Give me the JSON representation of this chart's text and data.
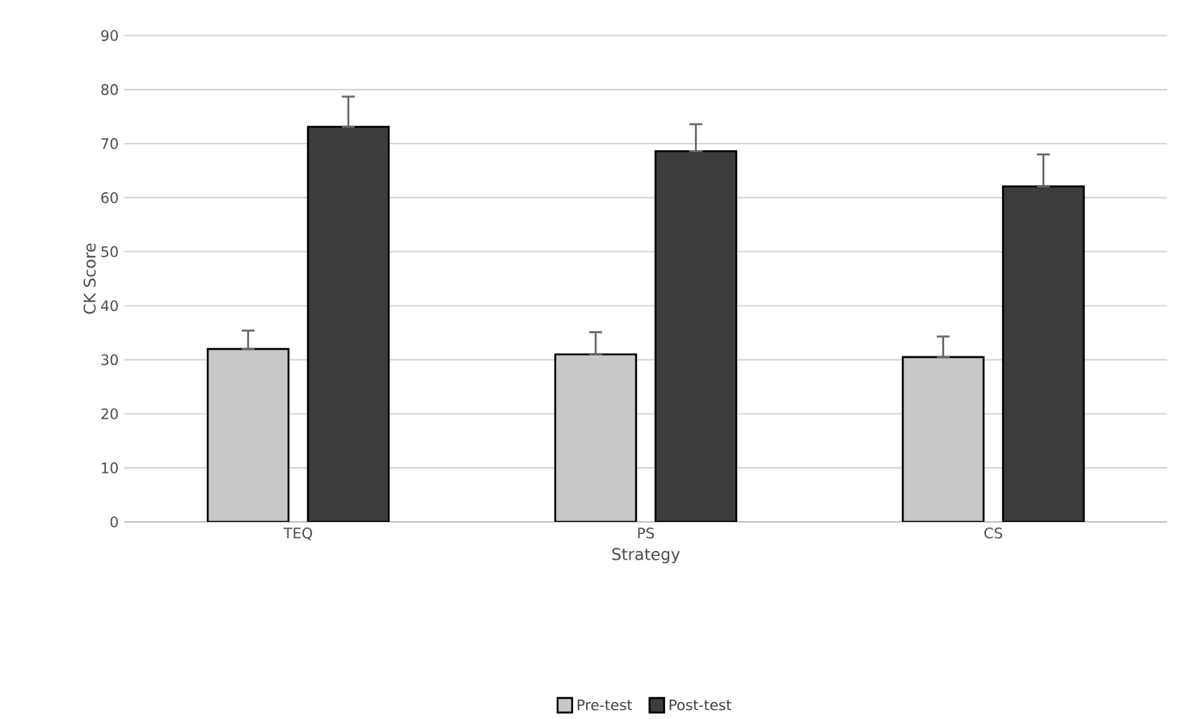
{
  "chart_data": {
    "type": "bar",
    "xlabel": "Strategy",
    "ylabel": "CK Score",
    "categories": [
      "TEQ",
      "PS",
      "CS"
    ],
    "series": [
      {
        "name": "Pre-test",
        "color": "#c8c8c8",
        "values": [
          32.0,
          31.0,
          30.5
        ],
        "errors": [
          [
            32.0,
            35.4
          ],
          [
            31.0,
            35.1
          ],
          [
            30.5,
            34.3
          ]
        ]
      },
      {
        "name": "Post-test",
        "color": "#3c3c3c",
        "values": [
          73.1,
          68.6,
          62.1
        ],
        "errors": [
          [
            73.1,
            78.7
          ],
          [
            68.6,
            73.6
          ],
          [
            62.1,
            68.0
          ]
        ]
      }
    ],
    "ylim": [
      0,
      90
    ],
    "yticks": [
      0,
      10,
      20,
      30,
      40,
      50,
      60,
      70,
      80,
      90
    ],
    "grid": "y",
    "legend": "bottom"
  }
}
